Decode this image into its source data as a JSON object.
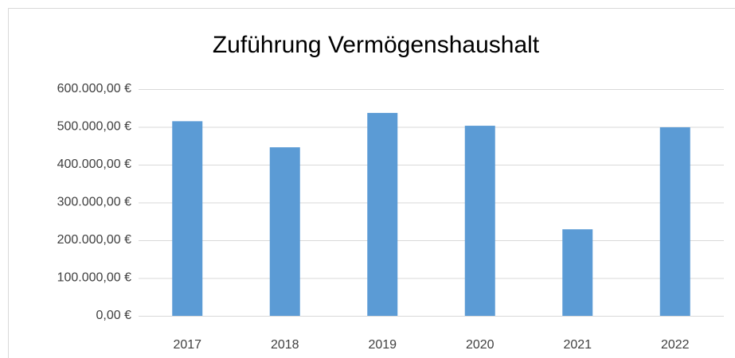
{
  "chart_data": {
    "type": "bar",
    "title": "Zuführung Vermögenshaushalt",
    "categories": [
      "2017",
      "2018",
      "2019",
      "2020",
      "2021",
      "2022"
    ],
    "values": [
      515000,
      446000,
      537000,
      503000,
      229000,
      499000
    ],
    "color": "#5b9bd5",
    "ylim": [
      0,
      600000
    ],
    "yticks": [
      {
        "value": 0,
        "label": "0,00 €"
      },
      {
        "value": 100000,
        "label": "100.000,00 €"
      },
      {
        "value": 200000,
        "label": "200.000,00 €"
      },
      {
        "value": 300000,
        "label": "300.000,00 €"
      },
      {
        "value": 400000,
        "label": "400.000,00 €"
      },
      {
        "value": 500000,
        "label": "500.000,00 €"
      },
      {
        "value": 600000,
        "label": "600.000,00 €"
      }
    ],
    "grid": true
  }
}
